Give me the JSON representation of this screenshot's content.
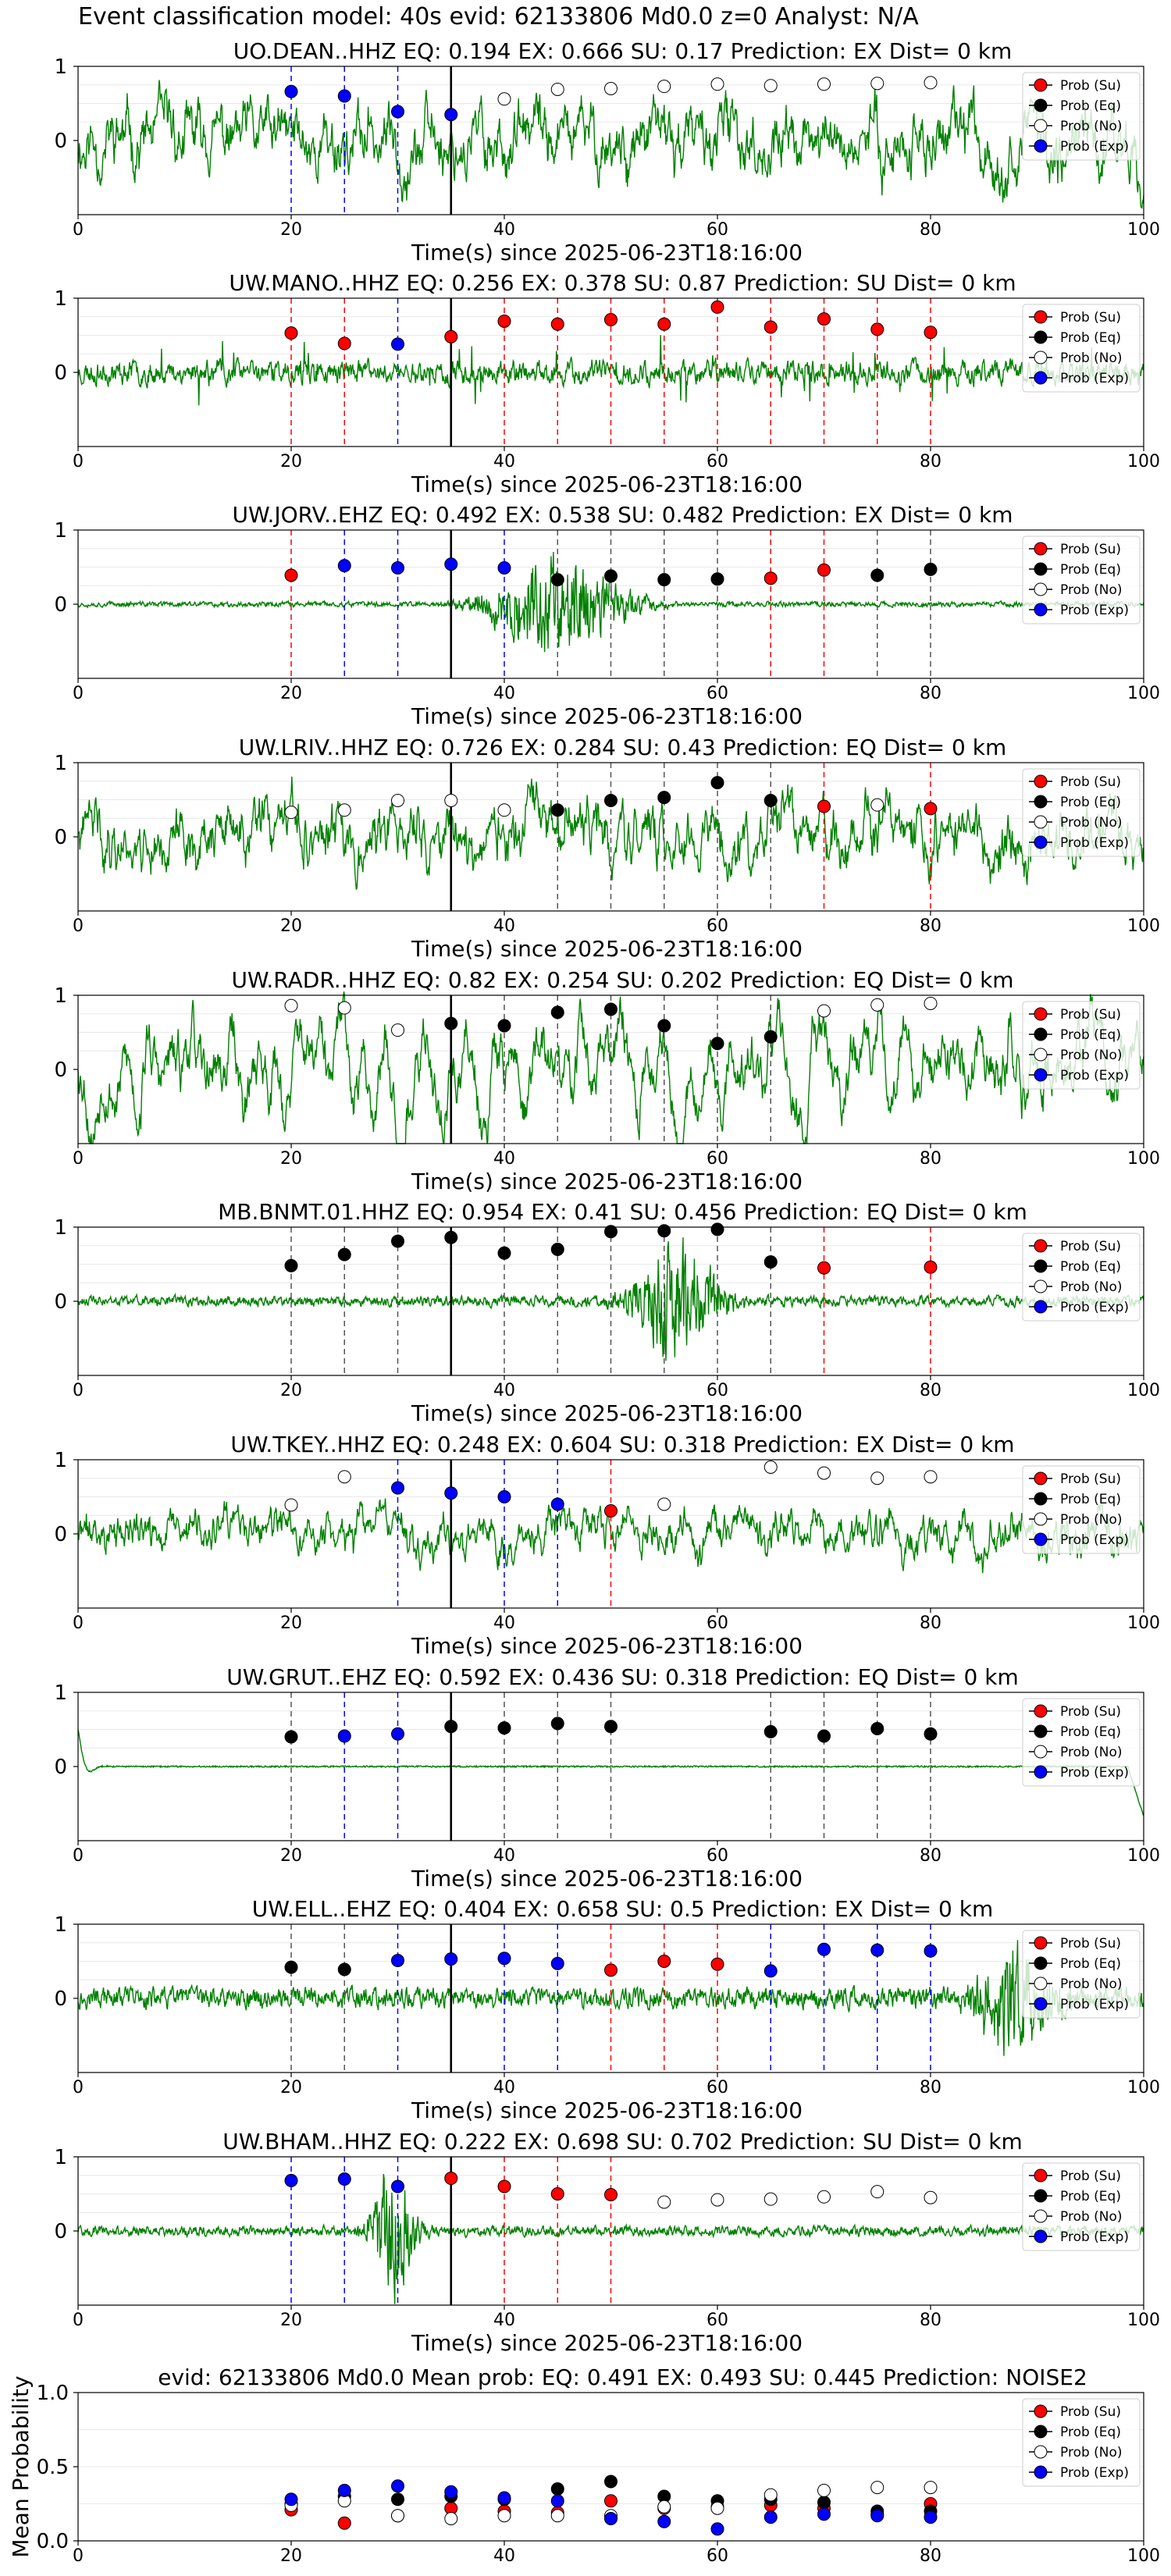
{
  "suptitle": "Event classification model: 40s evid: 62133806 Md0.0 z=0 Analyst: N/A",
  "colors": {
    "waveform": "#008000",
    "su": "#ff0000",
    "eq": "#000000",
    "no": "#ffffff",
    "exp": "#0000ff",
    "su_line": "#ff0000",
    "eq_line": "#555555",
    "exp_line": "#0000ff",
    "pick_line": "#000000"
  },
  "legend": {
    "position": "upper-right",
    "entries": [
      "Prob (Su)",
      "Prob (Eq)",
      "Prob (No)",
      "Prob (Exp)"
    ]
  },
  "chart_data": [
    {
      "type": "line",
      "title": "UO.DEAN..HHZ   EQ: 0.194  EX: 0.666  SU: 0.17   Prediction: EX    Dist= 0 km",
      "xlabel": "Time(s) since 2025-06-23T18:16:00",
      "ylabel": "",
      "xlim": [
        0,
        100
      ],
      "ylim": [
        -1,
        1
      ],
      "xticks": [
        "0",
        "20",
        "40",
        "60",
        "80",
        "100"
      ],
      "yticks": [
        "0",
        "1"
      ],
      "pick_time": 35,
      "waveform": {
        "style": "broadband",
        "amp": 0.55,
        "seed": 11
      },
      "points": [
        {
          "x": 20,
          "p": 0.66,
          "c": "exp"
        },
        {
          "x": 25,
          "p": 0.6,
          "c": "exp"
        },
        {
          "x": 30,
          "p": 0.39,
          "c": "exp"
        },
        {
          "x": 35,
          "p": 0.35,
          "c": "exp"
        },
        {
          "x": 40,
          "p": 0.56,
          "c": "no"
        },
        {
          "x": 45,
          "p": 0.69,
          "c": "no"
        },
        {
          "x": 50,
          "p": 0.7,
          "c": "no"
        },
        {
          "x": 55,
          "p": 0.73,
          "c": "no"
        },
        {
          "x": 60,
          "p": 0.76,
          "c": "no"
        },
        {
          "x": 65,
          "p": 0.74,
          "c": "no"
        },
        {
          "x": 70,
          "p": 0.76,
          "c": "no"
        },
        {
          "x": 75,
          "p": 0.77,
          "c": "no"
        },
        {
          "x": 80,
          "p": 0.78,
          "c": "no"
        }
      ]
    },
    {
      "type": "line",
      "title": "UW.MANO..HHZ   EQ: 0.256  EX: 0.378  SU: 0.87   Prediction: SU    Dist= 0 km",
      "xlabel": "Time(s) since 2025-06-23T18:16:00",
      "ylabel": "",
      "xlim": [
        0,
        100
      ],
      "ylim": [
        -1,
        1
      ],
      "xticks": [
        "0",
        "20",
        "40",
        "60",
        "80",
        "100"
      ],
      "yticks": [
        "0",
        "1"
      ],
      "pick_time": 35,
      "waveform": {
        "style": "noisy",
        "amp": 0.25,
        "seed": 23
      },
      "points": [
        {
          "x": 20,
          "p": 0.53,
          "c": "su"
        },
        {
          "x": 25,
          "p": 0.39,
          "c": "su"
        },
        {
          "x": 30,
          "p": 0.38,
          "c": "exp"
        },
        {
          "x": 35,
          "p": 0.48,
          "c": "su"
        },
        {
          "x": 40,
          "p": 0.69,
          "c": "su"
        },
        {
          "x": 45,
          "p": 0.65,
          "c": "su"
        },
        {
          "x": 50,
          "p": 0.71,
          "c": "su"
        },
        {
          "x": 55,
          "p": 0.65,
          "c": "su"
        },
        {
          "x": 60,
          "p": 0.88,
          "c": "su"
        },
        {
          "x": 65,
          "p": 0.61,
          "c": "su"
        },
        {
          "x": 70,
          "p": 0.72,
          "c": "su"
        },
        {
          "x": 75,
          "p": 0.58,
          "c": "su"
        },
        {
          "x": 80,
          "p": 0.54,
          "c": "su"
        }
      ]
    },
    {
      "type": "line",
      "title": "UW.JORV..EHZ   EQ: 0.492  EX: 0.538  SU: 0.482   Prediction: EX    Dist= 0 km",
      "xlabel": "Time(s) since 2025-06-23T18:16:00",
      "ylabel": "",
      "xlim": [
        0,
        100
      ],
      "ylim": [
        -1,
        1
      ],
      "xticks": [
        "0",
        "20",
        "40",
        "60",
        "80",
        "100"
      ],
      "yticks": [
        "0",
        "1"
      ],
      "pick_time": 35,
      "waveform": {
        "style": "burst",
        "amp": 0.03,
        "burst_center": 45,
        "burst_width": 6,
        "burst_amp": 0.6,
        "seed": 37
      },
      "points": [
        {
          "x": 20,
          "p": 0.39,
          "c": "su"
        },
        {
          "x": 25,
          "p": 0.52,
          "c": "exp"
        },
        {
          "x": 30,
          "p": 0.49,
          "c": "exp"
        },
        {
          "x": 35,
          "p": 0.54,
          "c": "exp"
        },
        {
          "x": 40,
          "p": 0.49,
          "c": "exp"
        },
        {
          "x": 45,
          "p": 0.33,
          "c": "eq"
        },
        {
          "x": 50,
          "p": 0.38,
          "c": "eq"
        },
        {
          "x": 55,
          "p": 0.33,
          "c": "eq"
        },
        {
          "x": 60,
          "p": 0.34,
          "c": "eq"
        },
        {
          "x": 65,
          "p": 0.35,
          "c": "su"
        },
        {
          "x": 70,
          "p": 0.46,
          "c": "su"
        },
        {
          "x": 75,
          "p": 0.39,
          "c": "eq"
        },
        {
          "x": 80,
          "p": 0.47,
          "c": "eq"
        }
      ]
    },
    {
      "type": "line",
      "title": "UW.LRIV..HHZ   EQ: 0.726  EX: 0.284  SU: 0.43   Prediction: EQ    Dist= 0 km",
      "xlabel": "Time(s) since 2025-06-23T18:16:00",
      "ylabel": "",
      "xlim": [
        0,
        100
      ],
      "ylim": [
        -1,
        1
      ],
      "xticks": [
        "0",
        "20",
        "40",
        "60",
        "80",
        "100"
      ],
      "yticks": [
        "0",
        "1"
      ],
      "pick_time": 35,
      "waveform": {
        "style": "broadband",
        "amp": 0.5,
        "seed": 41
      },
      "points": [
        {
          "x": 20,
          "p": 0.33,
          "c": "no"
        },
        {
          "x": 25,
          "p": 0.36,
          "c": "no"
        },
        {
          "x": 30,
          "p": 0.49,
          "c": "no"
        },
        {
          "x": 35,
          "p": 0.49,
          "c": "no"
        },
        {
          "x": 40,
          "p": 0.36,
          "c": "no"
        },
        {
          "x": 45,
          "p": 0.36,
          "c": "eq"
        },
        {
          "x": 50,
          "p": 0.49,
          "c": "eq"
        },
        {
          "x": 55,
          "p": 0.53,
          "c": "eq"
        },
        {
          "x": 60,
          "p": 0.73,
          "c": "eq"
        },
        {
          "x": 65,
          "p": 0.49,
          "c": "eq"
        },
        {
          "x": 70,
          "p": 0.41,
          "c": "su"
        },
        {
          "x": 75,
          "p": 0.43,
          "c": "no"
        },
        {
          "x": 80,
          "p": 0.38,
          "c": "su"
        }
      ]
    },
    {
      "type": "line",
      "title": "UW.RADR..HHZ   EQ: 0.82  EX: 0.254  SU: 0.202   Prediction: EQ    Dist= 0 km",
      "xlabel": "Time(s) since 2025-06-23T18:16:00",
      "ylabel": "",
      "xlim": [
        0,
        100
      ],
      "ylim": [
        -1,
        1
      ],
      "xticks": [
        "0",
        "20",
        "40",
        "60",
        "80",
        "100"
      ],
      "yticks": [
        "0",
        "1"
      ],
      "pick_time": 35,
      "waveform": {
        "style": "smooth",
        "amp": 0.75,
        "seed": 53
      },
      "points": [
        {
          "x": 20,
          "p": 0.86,
          "c": "no"
        },
        {
          "x": 25,
          "p": 0.83,
          "c": "no"
        },
        {
          "x": 30,
          "p": 0.53,
          "c": "no"
        },
        {
          "x": 35,
          "p": 0.62,
          "c": "eq"
        },
        {
          "x": 40,
          "p": 0.59,
          "c": "eq"
        },
        {
          "x": 45,
          "p": 0.77,
          "c": "eq"
        },
        {
          "x": 50,
          "p": 0.81,
          "c": "eq"
        },
        {
          "x": 55,
          "p": 0.59,
          "c": "eq"
        },
        {
          "x": 60,
          "p": 0.35,
          "c": "eq"
        },
        {
          "x": 65,
          "p": 0.44,
          "c": "eq"
        },
        {
          "x": 70,
          "p": 0.79,
          "c": "no"
        },
        {
          "x": 75,
          "p": 0.87,
          "c": "no"
        },
        {
          "x": 80,
          "p": 0.89,
          "c": "no"
        }
      ]
    },
    {
      "type": "line",
      "title": "MB.BNMT.01.HHZ   EQ: 0.954  EX: 0.41  SU: 0.456   Prediction: EQ    Dist= 0 km",
      "xlabel": "Time(s) since 2025-06-23T18:16:00",
      "ylabel": "",
      "xlim": [
        0,
        100
      ],
      "ylim": [
        -1,
        1
      ],
      "xticks": [
        "0",
        "20",
        "40",
        "60",
        "80",
        "100"
      ],
      "yticks": [
        "0",
        "1"
      ],
      "pick_time": 35,
      "waveform": {
        "style": "burst",
        "amp": 0.06,
        "burst_center": 56,
        "burst_width": 4,
        "burst_amp": 0.7,
        "seed": 61
      },
      "points": [
        {
          "x": 20,
          "p": 0.48,
          "c": "eq"
        },
        {
          "x": 25,
          "p": 0.63,
          "c": "eq"
        },
        {
          "x": 30,
          "p": 0.81,
          "c": "eq"
        },
        {
          "x": 35,
          "p": 0.86,
          "c": "eq"
        },
        {
          "x": 40,
          "p": 0.65,
          "c": "eq"
        },
        {
          "x": 45,
          "p": 0.7,
          "c": "eq"
        },
        {
          "x": 50,
          "p": 0.94,
          "c": "eq"
        },
        {
          "x": 55,
          "p": 0.95,
          "c": "eq"
        },
        {
          "x": 60,
          "p": 0.97,
          "c": "eq"
        },
        {
          "x": 65,
          "p": 0.53,
          "c": "eq"
        },
        {
          "x": 70,
          "p": 0.45,
          "c": "su"
        },
        {
          "x": 75,
          "p": null,
          "c": "no"
        },
        {
          "x": 80,
          "p": 0.46,
          "c": "su"
        }
      ]
    },
    {
      "type": "line",
      "title": "UW.TKEY..HHZ   EQ: 0.248  EX: 0.604  SU: 0.318   Prediction: EX    Dist= 0 km",
      "xlabel": "Time(s) since 2025-06-23T18:16:00",
      "ylabel": "",
      "xlim": [
        0,
        100
      ],
      "ylim": [
        -1,
        1
      ],
      "xticks": [
        "0",
        "20",
        "40",
        "60",
        "80",
        "100"
      ],
      "yticks": [
        "0",
        "1"
      ],
      "pick_time": 35,
      "waveform": {
        "style": "broadband",
        "amp": 0.35,
        "seed": 71
      },
      "points": [
        {
          "x": 20,
          "p": 0.39,
          "c": "no"
        },
        {
          "x": 25,
          "p": 0.77,
          "c": "no"
        },
        {
          "x": 30,
          "p": 0.62,
          "c": "exp"
        },
        {
          "x": 35,
          "p": 0.55,
          "c": "exp"
        },
        {
          "x": 40,
          "p": 0.5,
          "c": "exp"
        },
        {
          "x": 45,
          "p": 0.4,
          "c": "exp"
        },
        {
          "x": 50,
          "p": 0.31,
          "c": "su"
        },
        {
          "x": 55,
          "p": 0.4,
          "c": "no"
        },
        {
          "x": 65,
          "p": 0.9,
          "c": "no"
        },
        {
          "x": 70,
          "p": 0.82,
          "c": "no"
        },
        {
          "x": 75,
          "p": 0.75,
          "c": "no"
        },
        {
          "x": 80,
          "p": 0.77,
          "c": "no"
        }
      ]
    },
    {
      "type": "line",
      "title": "UW.GRUT..EHZ   EQ: 0.592  EX: 0.436  SU: 0.318   Prediction: EQ    Dist= 0 km",
      "xlabel": "Time(s) since 2025-06-23T18:16:00",
      "ylabel": "",
      "xlim": [
        0,
        100
      ],
      "ylim": [
        -1,
        1
      ],
      "xticks": [
        "0",
        "20",
        "40",
        "60",
        "80",
        "100"
      ],
      "yticks": [
        "0",
        "1"
      ],
      "pick_time": 35,
      "waveform": {
        "style": "quiet",
        "amp": 0.02,
        "seed": 83
      },
      "points": [
        {
          "x": 20,
          "p": 0.4,
          "c": "eq"
        },
        {
          "x": 25,
          "p": 0.41,
          "c": "exp"
        },
        {
          "x": 30,
          "p": 0.44,
          "c": "exp"
        },
        {
          "x": 35,
          "p": 0.54,
          "c": "eq"
        },
        {
          "x": 40,
          "p": 0.52,
          "c": "eq"
        },
        {
          "x": 45,
          "p": 0.58,
          "c": "eq"
        },
        {
          "x": 50,
          "p": 0.54,
          "c": "eq"
        },
        {
          "x": 65,
          "p": 0.47,
          "c": "eq"
        },
        {
          "x": 70,
          "p": 0.41,
          "c": "eq"
        },
        {
          "x": 75,
          "p": 0.51,
          "c": "eq"
        },
        {
          "x": 80,
          "p": 0.44,
          "c": "eq"
        }
      ]
    },
    {
      "type": "line",
      "title": "UW.ELL..EHZ   EQ: 0.404  EX: 0.658  SU: 0.5   Prediction: EX    Dist= 0 km",
      "xlabel": "Time(s) since 2025-06-23T18:16:00",
      "ylabel": "",
      "xlim": [
        0,
        100
      ],
      "ylim": [
        -1,
        1
      ],
      "xticks": [
        "0",
        "20",
        "40",
        "60",
        "80",
        "100"
      ],
      "yticks": [
        "0",
        "1"
      ],
      "pick_time": 35,
      "waveform": {
        "style": "burst",
        "amp": 0.12,
        "burst_center": 88,
        "burst_width": 4,
        "burst_amp": 0.65,
        "seed": 97
      },
      "points": [
        {
          "x": 20,
          "p": 0.42,
          "c": "eq"
        },
        {
          "x": 25,
          "p": 0.39,
          "c": "eq"
        },
        {
          "x": 30,
          "p": 0.51,
          "c": "exp"
        },
        {
          "x": 35,
          "p": 0.53,
          "c": "exp"
        },
        {
          "x": 40,
          "p": 0.54,
          "c": "exp"
        },
        {
          "x": 45,
          "p": 0.47,
          "c": "exp"
        },
        {
          "x": 50,
          "p": 0.38,
          "c": "su"
        },
        {
          "x": 55,
          "p": 0.5,
          "c": "su"
        },
        {
          "x": 60,
          "p": 0.46,
          "c": "su"
        },
        {
          "x": 65,
          "p": 0.37,
          "c": "exp"
        },
        {
          "x": 70,
          "p": 0.66,
          "c": "exp"
        },
        {
          "x": 75,
          "p": 0.65,
          "c": "exp"
        },
        {
          "x": 80,
          "p": 0.64,
          "c": "exp"
        }
      ]
    },
    {
      "type": "line",
      "title": "UW.BHAM..HHZ   EQ: 0.222  EX: 0.698  SU: 0.702   Prediction: SU    Dist= 0 km",
      "xlabel": "Time(s) since 2025-06-23T18:16:00",
      "ylabel": "",
      "xlim": [
        0,
        100
      ],
      "ylim": [
        -1,
        1
      ],
      "xticks": [
        "0",
        "20",
        "40",
        "60",
        "80",
        "100"
      ],
      "yticks": [
        "0",
        "1"
      ],
      "pick_time": 35,
      "waveform": {
        "style": "burst",
        "amp": 0.06,
        "burst_center": 29.5,
        "burst_width": 2,
        "burst_amp": 0.75,
        "seed": 101
      },
      "points": [
        {
          "x": 20,
          "p": 0.68,
          "c": "exp"
        },
        {
          "x": 25,
          "p": 0.7,
          "c": "exp"
        },
        {
          "x": 30,
          "p": 0.6,
          "c": "exp"
        },
        {
          "x": 35,
          "p": 0.71,
          "c": "su"
        },
        {
          "x": 40,
          "p": 0.6,
          "c": "su"
        },
        {
          "x": 45,
          "p": 0.5,
          "c": "su"
        },
        {
          "x": 50,
          "p": 0.49,
          "c": "su"
        },
        {
          "x": 55,
          "p": 0.39,
          "c": "no"
        },
        {
          "x": 60,
          "p": 0.42,
          "c": "no"
        },
        {
          "x": 65,
          "p": 0.43,
          "c": "no"
        },
        {
          "x": 70,
          "p": 0.46,
          "c": "no"
        },
        {
          "x": 75,
          "p": 0.53,
          "c": "no"
        },
        {
          "x": 80,
          "p": 0.45,
          "c": "no"
        }
      ]
    },
    {
      "type": "scatter",
      "title": "evid: 62133806   Md0.0   Mean prob:   EQ: 0.491  EX: 0.493  SU: 0.445   Prediction: NOISE2",
      "xlabel": "",
      "ylabel": "Mean Probability",
      "xlim": [
        0,
        100
      ],
      "ylim": [
        0,
        1
      ],
      "xticks": [
        "0",
        "20",
        "40",
        "60",
        "80",
        "100"
      ],
      "yticks": [
        "0.0",
        "0.5",
        "1.0"
      ],
      "series": [
        {
          "name": "Prob (Su)",
          "c": "su",
          "x": [
            20,
            25,
            30,
            35,
            40,
            45,
            50,
            55,
            60,
            65,
            70,
            75,
            80
          ],
          "y": [
            0.21,
            0.12,
            0.17,
            0.22,
            0.2,
            0.19,
            0.27,
            0.22,
            0.23,
            0.24,
            0.22,
            0.18,
            0.25
          ]
        },
        {
          "name": "Prob (Eq)",
          "c": "eq",
          "x": [
            20,
            25,
            30,
            35,
            40,
            45,
            50,
            55,
            60,
            65,
            70,
            75,
            80
          ],
          "y": [
            0.25,
            0.3,
            0.28,
            0.3,
            0.28,
            0.35,
            0.4,
            0.3,
            0.27,
            0.28,
            0.26,
            0.2,
            0.2
          ]
        },
        {
          "name": "Prob (No)",
          "c": "no",
          "x": [
            20,
            25,
            30,
            35,
            40,
            45,
            50,
            55,
            60,
            65,
            70,
            75,
            80
          ],
          "y": [
            0.24,
            0.27,
            0.17,
            0.15,
            0.17,
            0.17,
            0.17,
            0.23,
            0.22,
            0.31,
            0.34,
            0.36,
            0.36
          ]
        },
        {
          "name": "Prob (Exp)",
          "c": "exp",
          "x": [
            20,
            25,
            30,
            35,
            40,
            45,
            50,
            55,
            60,
            65,
            70,
            75,
            80
          ],
          "y": [
            0.28,
            0.34,
            0.37,
            0.33,
            0.29,
            0.27,
            0.15,
            0.13,
            0.08,
            0.16,
            0.18,
            0.17,
            0.16
          ]
        }
      ]
    }
  ]
}
